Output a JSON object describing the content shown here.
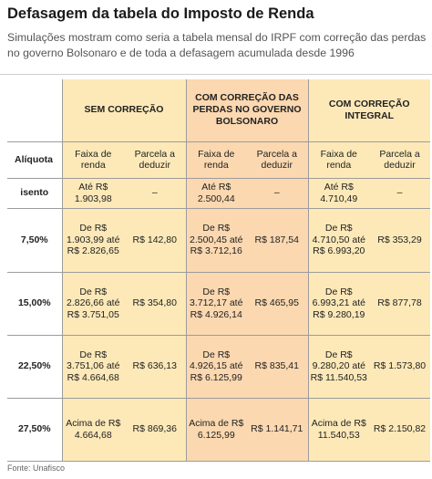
{
  "title": "Defasagem da tabela do Imposto de Renda",
  "subtitle": "Simulações mostram como seria a tabela mensal do IRPF com correção das perdas no governo Bolsonaro e de toda a defasagem acumulada desde 1996",
  "groups": {
    "g1": "SEM CORREÇÃO",
    "g2": "COM CORREÇÃO DAS PERDAS NO GOVERNO BOLSONARO",
    "g3": "COM CORREÇÃO INTEGRAL"
  },
  "headers": {
    "aliquota": "Alíquota",
    "faixa": "Faixa de renda",
    "parcela": "Parcela a deduzir"
  },
  "rows": [
    {
      "aliquota": "isento",
      "g1_faixa": "Até R$ 1.903,98",
      "g1_parcela": "–",
      "g2_faixa": "Até R$ 2.500,44",
      "g2_parcela": "–",
      "g3_faixa": "Até R$ 4.710,49",
      "g3_parcela": "–"
    },
    {
      "aliquota": "7,50%",
      "g1_faixa": "De R$ 1.903,99 até R$ 2.826,65",
      "g1_parcela": "R$ 142,80",
      "g2_faixa": "De R$ 2.500,45 até R$ 3.712,16",
      "g2_parcela": "R$ 187,54",
      "g3_faixa": "De R$ 4.710,50 até R$ 6.993,20",
      "g3_parcela": "R$ 353,29"
    },
    {
      "aliquota": "15,00%",
      "g1_faixa": "De R$ 2.826,66 até R$ 3.751,05",
      "g1_parcela": "R$ 354,80",
      "g2_faixa": "De R$ 3.712,17 até R$ 4.926,14",
      "g2_parcela": "R$ 465,95",
      "g3_faixa": "De R$ 6.993,21 até R$ 9.280,19",
      "g3_parcela": "R$ 877,78"
    },
    {
      "aliquota": "22,50%",
      "g1_faixa": "De R$ 3.751,06 até R$ 4.664,68",
      "g1_parcela": "R$ 636,13",
      "g2_faixa": "De R$ 4.926,15 até R$ 6.125,99",
      "g2_parcela": "R$ 835,41",
      "g3_faixa": "De R$ 9.280,20 até R$ 11.540,53",
      "g3_parcela": "R$ 1.573,80"
    },
    {
      "aliquota": "27,50%",
      "g1_faixa": "Acima de R$ 4.664,68",
      "g1_parcela": "R$ 869,36",
      "g2_faixa": "Acima de R$ 6.125,99",
      "g2_parcela": "R$ 1.141,71",
      "g3_faixa": "Acima de R$ 11.540,53",
      "g3_parcela": "R$ 2.150,82"
    }
  ],
  "source": "Fonte: Unafisco",
  "colors": {
    "col_sem_correcao": "#fde9b8",
    "col_perdas_bolsonaro": "#fbd8b0",
    "col_integral": "#fde9b8"
  }
}
